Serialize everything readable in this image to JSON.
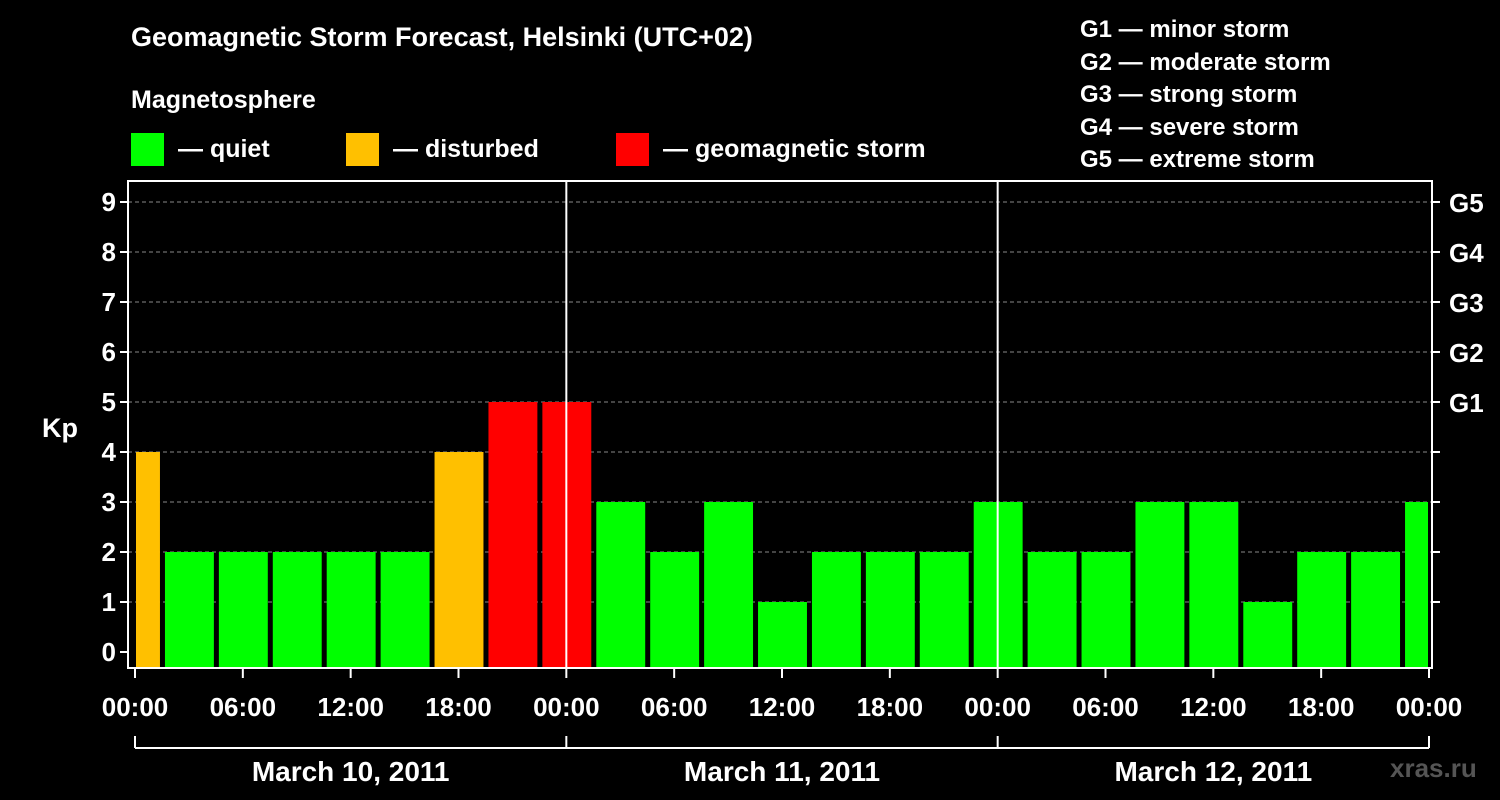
{
  "title": "Geomagnetic Storm Forecast, Helsinki (UTC+02)",
  "subtitle": "Magnetosphere",
  "legend": [
    {
      "label": "— quiet",
      "color": "#00ff00"
    },
    {
      "label": "— disturbed",
      "color": "#ffc000"
    },
    {
      "label": "— geomagnetic storm",
      "color": "#ff0000"
    }
  ],
  "storm_scale": [
    "G1 — minor storm",
    "G2 — moderate storm",
    "G3 — strong storm",
    "G4 — severe storm",
    "G5 — extreme storm"
  ],
  "watermark": "xras.ru",
  "chart_data": {
    "type": "bar",
    "ylabel": "Kp",
    "ylim": [
      0,
      9
    ],
    "yticks": [
      "0",
      "1",
      "2",
      "3",
      "4",
      "5",
      "6",
      "7",
      "8",
      "9"
    ],
    "right_axis_labels": [
      {
        "kp": 5,
        "label": "G1"
      },
      {
        "kp": 6,
        "label": "G2"
      },
      {
        "kp": 7,
        "label": "G3"
      },
      {
        "kp": 8,
        "label": "G4"
      },
      {
        "kp": 9,
        "label": "G5"
      }
    ],
    "x_tick_labels": [
      "00:00",
      "06:00",
      "12:00",
      "18:00",
      "00:00",
      "06:00",
      "12:00",
      "18:00",
      "00:00",
      "06:00",
      "12:00",
      "18:00",
      "00:00"
    ],
    "day_labels": [
      "March 10, 2011",
      "March 11, 2011",
      "March 12, 2011"
    ],
    "interval_hours": 3,
    "values": [
      4,
      2,
      2,
      2,
      2,
      2,
      4,
      5,
      5,
      3,
      2,
      3,
      1,
      2,
      2,
      2,
      3,
      2,
      2,
      3,
      3,
      1,
      2,
      2,
      3
    ],
    "levels": [
      "disturbed",
      "quiet",
      "quiet",
      "quiet",
      "quiet",
      "quiet",
      "disturbed",
      "storm",
      "storm",
      "quiet",
      "quiet",
      "quiet",
      "quiet",
      "quiet",
      "quiet",
      "quiet",
      "quiet",
      "quiet",
      "quiet",
      "quiet",
      "quiet",
      "quiet",
      "quiet",
      "quiet",
      "quiet"
    ],
    "colors": {
      "quiet": "#00ff00",
      "disturbed": "#ffc000",
      "storm": "#ff0000"
    },
    "grid": true
  }
}
